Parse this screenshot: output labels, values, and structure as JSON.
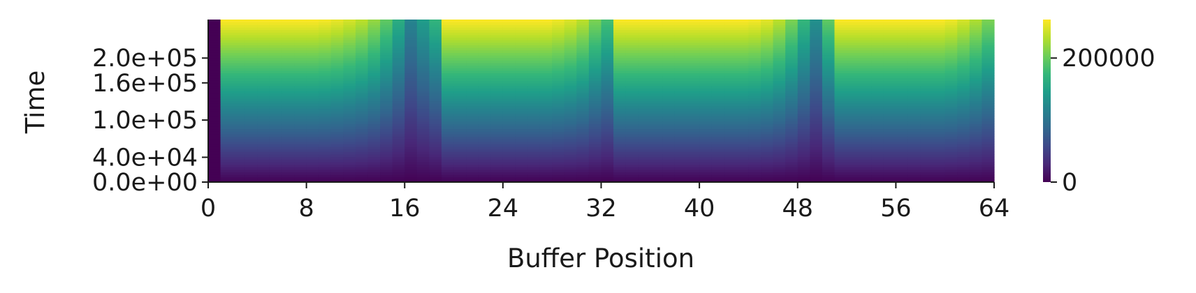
{
  "chart_data": {
    "type": "heatmap",
    "xlabel": "Buffer Position",
    "ylabel": "Time",
    "xlim": [
      0,
      64
    ],
    "ylim": [
      0,
      262144
    ],
    "x_ticks": [
      0,
      8,
      16,
      24,
      32,
      40,
      48,
      56,
      64
    ],
    "x_tick_labels": [
      "0",
      "8",
      "16",
      "24",
      "32",
      "40",
      "48",
      "56",
      "64"
    ],
    "y_ticks": [
      0,
      40000,
      100000,
      160000,
      200000
    ],
    "y_tick_labels": [
      "0.0e+00",
      "4.0e+04",
      "1.0e+05",
      "1.6e+05",
      "2.0e+05"
    ],
    "colorbar": {
      "min": 0,
      "max": 262144,
      "ticks": [
        0,
        200000
      ],
      "tick_labels": [
        "0",
        "200000"
      ],
      "colormap": "viridis"
    },
    "colormap_stops": [
      "#440154",
      "#482878",
      "#3e4989",
      "#31688e",
      "#26828e",
      "#1f9e89",
      "#35b779",
      "#6ece58",
      "#b5de2b",
      "#fde725"
    ],
    "columns": 64,
    "time_rows": 64,
    "column_rate_factors": [
      0.0,
      1.0,
      1.0,
      1.0,
      1.0,
      1.0,
      1.0,
      1.0,
      1.0,
      0.99,
      0.97,
      0.94,
      0.9,
      0.84,
      0.75,
      0.62,
      0.45,
      0.55,
      0.65,
      1.0,
      1.0,
      1.0,
      1.0,
      1.0,
      1.0,
      1.0,
      1.0,
      1.0,
      0.98,
      0.95,
      0.9,
      0.8,
      0.7,
      1.0,
      1.0,
      1.0,
      1.0,
      1.0,
      1.0,
      1.0,
      1.0,
      1.0,
      1.0,
      1.0,
      0.99,
      0.96,
      0.9,
      0.8,
      0.66,
      0.5,
      0.75,
      1.0,
      1.0,
      1.0,
      1.0,
      1.0,
      1.0,
      1.0,
      1.0,
      1.0,
      0.98,
      0.94,
      0.88,
      0.8
    ],
    "column_max_values": [
      0,
      262144,
      262144,
      262144,
      262144,
      262144,
      262144,
      262144,
      262144,
      262144,
      262144,
      262144,
      262144,
      262144,
      262144,
      262144,
      262144,
      262144,
      262144,
      262144,
      262144,
      262144,
      262144,
      262144,
      262144,
      262144,
      262144,
      262144,
      262144,
      262144,
      262144,
      262144,
      262144,
      262144,
      262144,
      262144,
      262144,
      262144,
      262144,
      262144,
      262144,
      262144,
      262144,
      262144,
      262144,
      262144,
      262144,
      262144,
      262144,
      262144,
      262144,
      262144,
      262144,
      262144,
      262144,
      262144,
      262144,
      262144,
      262144,
      262144,
      262144,
      262144,
      262144,
      262144
    ]
  }
}
